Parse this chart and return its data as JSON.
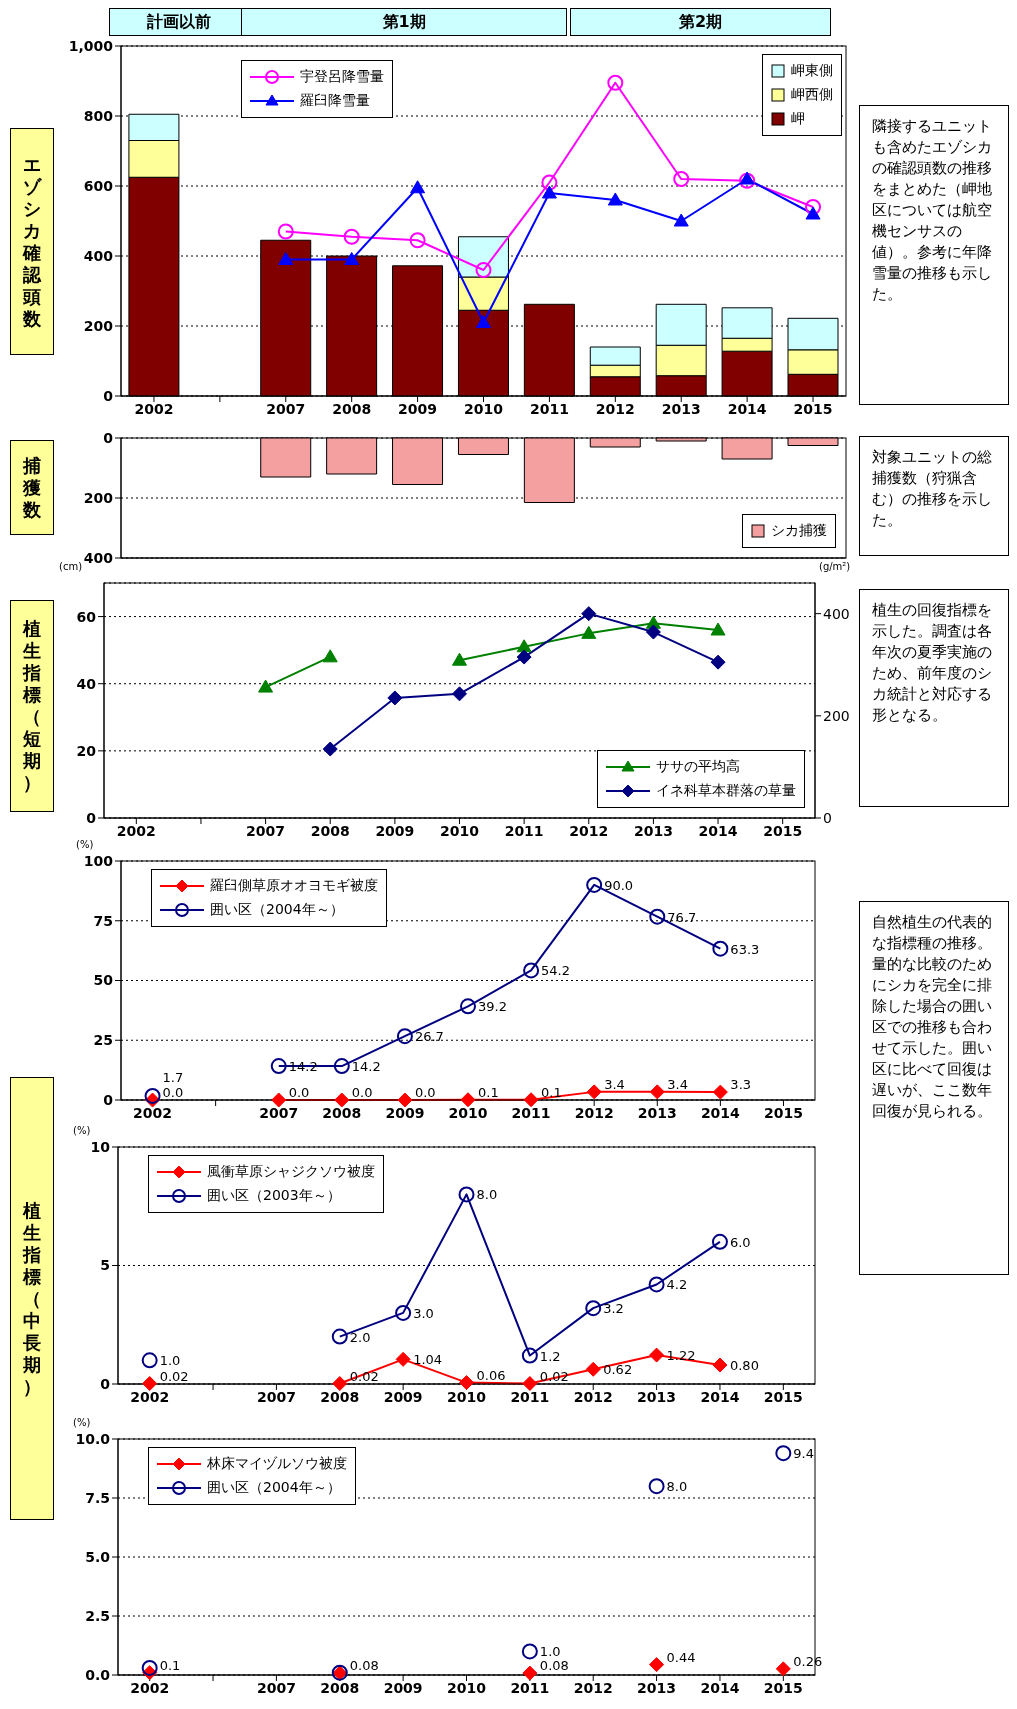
{
  "chart_data": [
    {
      "type": "bar",
      "stacked": true,
      "ylabel": "エゾシカ確認頭数",
      "categories": [
        "2002",
        null,
        "2007",
        "2008",
        "2009",
        "2010",
        "2011",
        "2012",
        "2013",
        "2014",
        "2015"
      ],
      "ylim": [
        0,
        1000
      ],
      "yticks": [
        0,
        200,
        400,
        600,
        800,
        {
          "value": 1000,
          "label": "1,000"
        }
      ],
      "grid": "y",
      "legend": "top",
      "annotations": [
        "計画以前",
        "第1期",
        "第2期",
        "隣接するユニットも含めたエゾシカの確認頭数の推移をまとめた（岬地区については航空機センサスの値）。参考に年降雪量の推移も示した。"
      ],
      "series": [
        {
          "name": "岬",
          "type": "bar",
          "color": "#800000",
          "values": [
            625,
            null,
            445,
            400,
            372,
            245,
            262,
            55,
            58,
            128,
            62
          ]
        },
        {
          "name": "岬西側",
          "type": "bar",
          "color": "#ffff99",
          "values": [
            105,
            null,
            null,
            null,
            null,
            95,
            null,
            33,
            87,
            37,
            70
          ]
        },
        {
          "name": "岬東側",
          "type": "bar",
          "color": "#ccffff",
          "values": [
            75,
            null,
            null,
            null,
            null,
            115,
            null,
            52,
            117,
            87,
            90
          ]
        },
        {
          "name": "宇登呂降雪量",
          "type": "line",
          "color": "#ff00ff",
          "marker": "circle",
          "values": [
            null,
            null,
            470,
            455,
            445,
            360,
            610,
            895,
            620,
            615,
            540
          ]
        },
        {
          "name": "羅臼降雪量",
          "type": "line",
          "color": "#0000ff",
          "marker": "triangle",
          "values": [
            null,
            null,
            390,
            390,
            595,
            210,
            580,
            560,
            500,
            620,
            520
          ]
        }
      ]
    },
    {
      "type": "bar",
      "ylabel": "捕獲数",
      "categories": [
        "2002",
        null,
        "2007",
        "2008",
        "2009",
        "2010",
        "2011",
        "2012",
        "2013",
        "2014",
        "2015"
      ],
      "ylim": [
        400,
        0
      ],
      "yticks": [
        0,
        200,
        400
      ],
      "grid": "y",
      "legend": "bottom right",
      "tick_labels": "y",
      "annotations": [
        "対象ユニットの総捕獲数（狩猟含む）の推移を示した。"
      ],
      "series": [
        {
          "name": "シカ捕獲",
          "color": "#f4a0a0",
          "values": [
            null,
            null,
            130,
            120,
            155,
            55,
            215,
            30,
            10,
            70,
            25
          ]
        }
      ]
    },
    {
      "type": "line",
      "ylabel": "(cm)",
      "y2label": "(g/m²)",
      "categories": [
        "2002",
        null,
        "2007",
        "2008",
        "2009",
        "2010",
        "2011",
        "2012",
        "2013",
        "2014",
        "2015"
      ],
      "ylim": [
        0,
        70
      ],
      "yticks": [
        0,
        20,
        40,
        60
      ],
      "y2lim": [
        0,
        460
      ],
      "y2ticks": [
        0,
        200,
        400
      ],
      "grid": "y",
      "legend": "bottom right",
      "annotations": [
        "植生の回復指標を示した。調査は各年次の夏季実施のため、前年度のシカ統計と対応する形となる。",
        "植生指標（短期）"
      ],
      "series": [
        {
          "name": "ササの平均高",
          "color": "#008000",
          "marker": "triangle",
          "values": [
            null,
            null,
            39,
            48,
            null,
            47,
            51,
            55,
            58,
            56,
            null
          ]
        },
        {
          "name": "イネ科草本群落の草量",
          "color": "#000080",
          "marker": "diamond",
          "axis": "y2",
          "values": [
            null,
            null,
            null,
            135,
            235,
            243,
            315,
            400,
            364,
            305,
            null
          ]
        }
      ]
    },
    {
      "type": "line",
      "ylabel": "(%)",
      "categories": [
        "2002",
        null,
        "2007",
        "2008",
        "2009",
        "2010",
        "2011",
        "2012",
        "2013",
        "2014",
        "2015"
      ],
      "ylim": [
        0,
        100
      ],
      "yticks": [
        0,
        25,
        50,
        75,
        100
      ],
      "grid": "y",
      "legend": "top left",
      "annotations": [
        "自然植生の代表的な指標種の推移。量的な比較のためにシカを完全に排除した場合の囲い区での推移も合わせて示した。囲い区に比べて回復は遅いが、ここ数年回復が見られる。",
        "植生指標（中長期）"
      ],
      "series": [
        {
          "name": "羅臼側草原オオヨモギ被度",
          "color": "#ff0000",
          "marker": "diamond",
          "values": [
            0.0,
            null,
            0.0,
            0.0,
            0.0,
            0.1,
            0.1,
            3.4,
            3.4,
            3.3,
            null
          ],
          "value_labels": [
            "0.0",
            null,
            "0.0",
            "0.0",
            "0.0",
            "0.1",
            "0.1",
            "3.4",
            "3.4",
            "3.3",
            null
          ]
        },
        {
          "name": "囲い区（2004年～）",
          "color": "#000080",
          "marker": "circle",
          "values": [
            1.7,
            null,
            14.2,
            14.2,
            26.7,
            39.2,
            54.2,
            90.0,
            76.7,
            63.3,
            null
          ],
          "value_labels": [
            "1.7",
            null,
            "14.2",
            "14.2",
            "26.7",
            "39.2",
            "54.2",
            "90.0",
            "76.7",
            "63.3",
            null
          ]
        }
      ]
    },
    {
      "type": "line",
      "ylabel": "(%)",
      "categories": [
        "2002",
        null,
        "2007",
        "2008",
        "2009",
        "2010",
        "2011",
        "2012",
        "2013",
        "2014",
        "2015"
      ],
      "ylim": [
        0,
        10
      ],
      "yticks": [
        0,
        5,
        10
      ],
      "grid": "y",
      "legend": "top left",
      "series": [
        {
          "name": "風衝草原シャジクソウ被度",
          "color": "#ff0000",
          "marker": "diamond",
          "values": [
            0.02,
            null,
            null,
            0.02,
            1.04,
            0.06,
            0.02,
            0.62,
            1.22,
            0.8,
            null
          ],
          "value_labels": [
            "0.02",
            null,
            null,
            "0.02",
            "1.04",
            "0.06",
            "0.02",
            "0.62",
            "1.22",
            "0.80",
            null
          ]
        },
        {
          "name": "囲い区（2003年～）",
          "color": "#000080",
          "marker": "circle",
          "values": [
            1.0,
            null,
            null,
            2.0,
            3.0,
            8.0,
            1.2,
            3.2,
            4.2,
            6.0,
            null
          ],
          "value_labels": [
            "1.0",
            null,
            null,
            "2.0",
            "3.0",
            "8.0",
            "1.2",
            "3.2",
            "4.2",
            "6.0",
            null
          ]
        }
      ]
    },
    {
      "type": "line",
      "ylabel": "(%)",
      "categories": [
        "2002",
        null,
        "2007",
        "2008",
        "2009",
        "2010",
        "2011",
        "2012",
        "2013",
        "2014",
        "2015"
      ],
      "ylim": [
        0,
        10
      ],
      "yticks": [
        {
          "value": 0,
          "label": "0.0"
        },
        {
          "value": 2.5,
          "label": "2.5"
        },
        {
          "value": 5,
          "label": "5.0"
        },
        {
          "value": 7.5,
          "label": "7.5"
        },
        {
          "value": 10,
          "label": "10.0"
        }
      ],
      "grid": "y",
      "legend": "top left",
      "series": [
        {
          "name": "林床マイヅルソウ被度",
          "color": "#ff0000",
          "marker": "diamond",
          "values": [
            0.1,
            null,
            null,
            0.08,
            null,
            null,
            0.08,
            null,
            0.44,
            null,
            0.26
          ],
          "value_labels": [
            "0.1",
            null,
            null,
            "0.08",
            null,
            null,
            "0.08",
            null,
            "0.44",
            null,
            "0.26"
          ]
        },
        {
          "name": "囲い区（2004年～）",
          "color": "#000080",
          "marker": "circle",
          "values": [
            0.3,
            null,
            null,
            0.1,
            null,
            null,
            1.0,
            null,
            8.0,
            null,
            9.4
          ],
          "value_labels": [
            null,
            null,
            null,
            null,
            null,
            null,
            "1.0",
            null,
            "8.0",
            null,
            "9.4"
          ]
        }
      ]
    }
  ]
}
